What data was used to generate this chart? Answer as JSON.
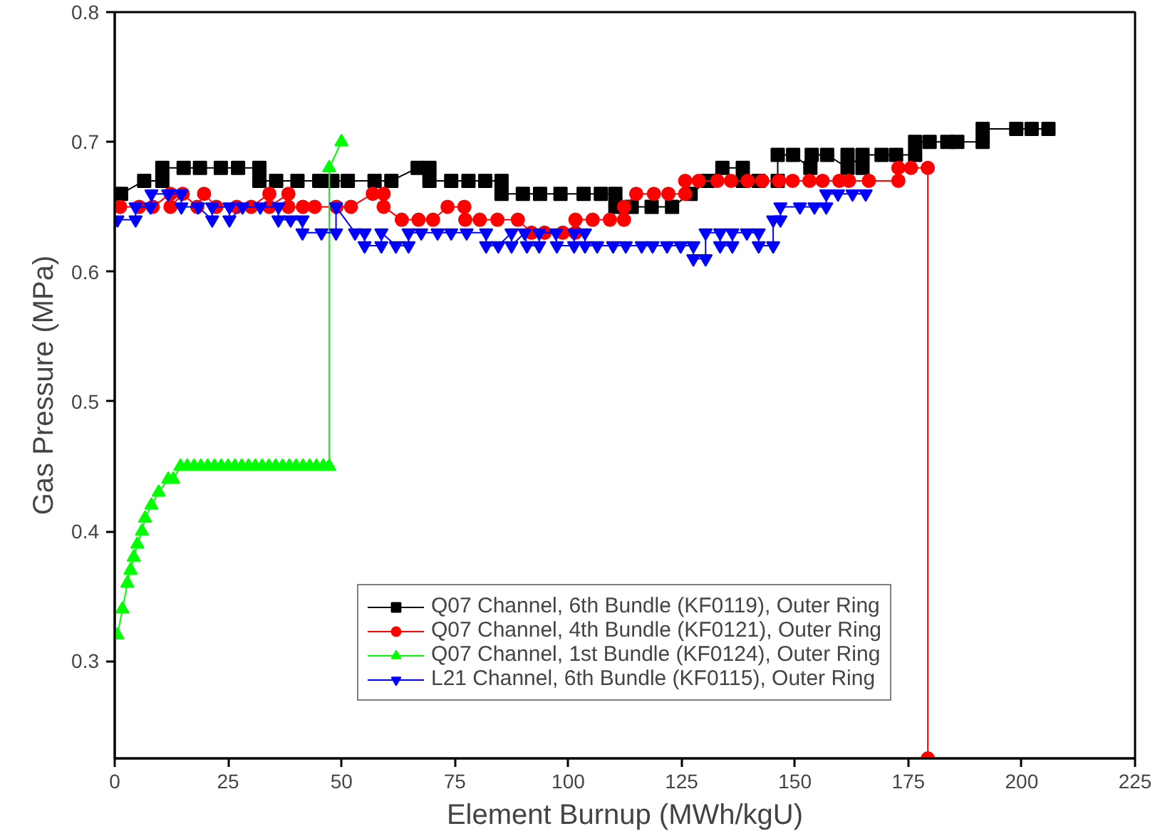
{
  "chart_data": {
    "type": "line",
    "xlabel": "Element Burnup (MWh/kgU)",
    "ylabel": "Gas Pressure (MPa)",
    "xlim": [
      0,
      225
    ],
    "ylim": [
      0.225,
      0.8
    ],
    "xticks": [
      0,
      25,
      50,
      75,
      100,
      125,
      150,
      175,
      200,
      225
    ],
    "yticks": [
      {
        "value": 0.3,
        "label": "0.3"
      },
      {
        "value": 0.4,
        "label": "0.4"
      },
      {
        "value": 0.5,
        "label": "0.5"
      },
      {
        "value": 0.6,
        "label": "0.6"
      },
      {
        "value": 0.7,
        "label": "0.7"
      },
      {
        "value": 0.8,
        "label": "0.8"
      }
    ],
    "grid": false,
    "legend": "bottom",
    "series": [
      {
        "name": "Q07 Channel, 6th Bundle (KF0119), Outer Ring",
        "color": "#000000",
        "marker": "square",
        "x": [
          1.4,
          6.5,
          10.5,
          10.5,
          15.2,
          18.8,
          23.4,
          27.2,
          31.9,
          31.9,
          35.6,
          40.3,
          45.1,
          48,
          51.4,
          57.3,
          61,
          66.8,
          69.4,
          69.4,
          74.2,
          78,
          81.7,
          85.3,
          85.3,
          90,
          93.8,
          98.3,
          103.4,
          107.2,
          110.4,
          110.4,
          114,
          118.4,
          122.9,
          127,
          130.8,
          134,
          138.5,
          138.5,
          142,
          146.2,
          146.2,
          149.6,
          153.4,
          153.7,
          157.1,
          161.6,
          161.6,
          164.9,
          164.9,
          169.1,
          172.3,
          176.5,
          176.5,
          179.7,
          183.6,
          185.8,
          191.4,
          191.4,
          198.8,
          202.2,
          205.9
        ],
        "values": [
          0.66,
          0.67,
          0.67,
          0.68,
          0.68,
          0.68,
          0.68,
          0.68,
          0.68,
          0.67,
          0.67,
          0.67,
          0.67,
          0.67,
          0.67,
          0.67,
          0.67,
          0.68,
          0.68,
          0.67,
          0.67,
          0.67,
          0.67,
          0.67,
          0.66,
          0.66,
          0.66,
          0.66,
          0.66,
          0.66,
          0.66,
          0.65,
          0.65,
          0.65,
          0.65,
          0.66,
          0.67,
          0.68,
          0.68,
          0.67,
          0.67,
          0.67,
          0.69,
          0.69,
          0.68,
          0.69,
          0.69,
          0.68,
          0.69,
          0.68,
          0.69,
          0.69,
          0.69,
          0.69,
          0.7,
          0.7,
          0.7,
          0.7,
          0.7,
          0.71,
          0.71,
          0.71,
          0.71
        ]
      },
      {
        "name": "Q07 Channel, 4th Bundle (KF0121), Outer Ring",
        "color": "#ff0000",
        "marker": "circle",
        "x": [
          1.2,
          5.4,
          8.4,
          12.3,
          12.3,
          15,
          18.2,
          19.7,
          22.4,
          26.9,
          30.1,
          34.1,
          34.1,
          38.3,
          38.3,
          41.5,
          44.1,
          48.9,
          52.1,
          56.9,
          59.3,
          59.3,
          63.3,
          67,
          70.2,
          73.4,
          77.1,
          77.3,
          80.5,
          84.4,
          88.9,
          91.9,
          94.8,
          98.8,
          101.6,
          101.6,
          105.4,
          109.2,
          112.3,
          112.3,
          115,
          118.9,
          122.1,
          125.8,
          125.8,
          128.8,
          132.9,
          135.9,
          139.6,
          142.8,
          146.5,
          149.5,
          153.2,
          156.1,
          159.8,
          161.9,
          166.3,
          172.8,
          172.8,
          175.6,
          179.3,
          179.3
        ],
        "values": [
          0.65,
          0.65,
          0.65,
          0.66,
          0.65,
          0.66,
          0.65,
          0.66,
          0.65,
          0.65,
          0.65,
          0.66,
          0.65,
          0.66,
          0.65,
          0.65,
          0.65,
          0.65,
          0.65,
          0.66,
          0.66,
          0.65,
          0.64,
          0.64,
          0.64,
          0.65,
          0.65,
          0.64,
          0.64,
          0.64,
          0.64,
          0.63,
          0.63,
          0.63,
          0.63,
          0.64,
          0.64,
          0.64,
          0.64,
          0.65,
          0.66,
          0.66,
          0.66,
          0.66,
          0.67,
          0.67,
          0.67,
          0.67,
          0.67,
          0.67,
          0.67,
          0.67,
          0.67,
          0.67,
          0.67,
          0.67,
          0.67,
          0.67,
          0.68,
          0.68,
          0.68,
          0.225
        ]
      },
      {
        "name": "Q07 Channel, 1st Bundle (KF0124), Outer Ring",
        "color": "#00ff00",
        "marker": "triangle",
        "x": [
          0.6,
          1.7,
          2.8,
          3.5,
          4.2,
          5,
          6,
          6.7,
          8.1,
          9.7,
          11.8,
          12.9,
          14.5,
          16,
          17.5,
          19,
          20.5,
          22,
          23.5,
          25,
          26.5,
          28,
          29.5,
          31,
          32.5,
          34,
          35.5,
          37,
          38.5,
          40,
          41.5,
          43,
          44.5,
          46,
          47.3,
          47.3,
          50
        ],
        "values": [
          0.32,
          0.34,
          0.36,
          0.37,
          0.38,
          0.39,
          0.4,
          0.41,
          0.42,
          0.43,
          0.44,
          0.44,
          0.45,
          0.45,
          0.45,
          0.45,
          0.45,
          0.45,
          0.45,
          0.45,
          0.45,
          0.45,
          0.45,
          0.45,
          0.45,
          0.45,
          0.45,
          0.45,
          0.45,
          0.45,
          0.45,
          0.45,
          0.45,
          0.45,
          0.45,
          0.68,
          0.7
        ]
      },
      {
        "name": "L21 Channel, 6th Bundle (KF0115), Outer Ring",
        "color": "#0000ff",
        "marker": "triangle_down",
        "x": [
          0.6,
          4.6,
          4.6,
          7.9,
          8.1,
          11.8,
          14.7,
          14.7,
          18.4,
          21.5,
          21.5,
          25.3,
          25.3,
          28.2,
          32.1,
          36.1,
          36.1,
          38.8,
          41.4,
          41.4,
          45.6,
          48.8,
          48.8,
          53,
          55.1,
          55.1,
          58.8,
          58.8,
          62,
          64.8,
          64.8,
          67.6,
          71.2,
          74.2,
          77.6,
          81.9,
          81.9,
          84.6,
          87.5,
          87.5,
          90.4,
          90.9,
          93.6,
          93.6,
          97.3,
          97.5,
          101.3,
          101.3,
          103.7,
          103.7,
          106.4,
          109.9,
          112.7,
          116.2,
          118.6,
          121.8,
          124.8,
          127.6,
          127.6,
          130.3,
          130.3,
          133.5,
          133.5,
          136.2,
          136.2,
          139.4,
          142,
          142,
          145.2,
          145.2,
          146.8,
          146.8,
          151.1,
          154.3,
          156.9,
          156.9,
          159.5,
          162.7,
          165.6
        ],
        "values": [
          0.64,
          0.64,
          0.65,
          0.65,
          0.66,
          0.66,
          0.66,
          0.65,
          0.65,
          0.64,
          0.65,
          0.65,
          0.64,
          0.65,
          0.65,
          0.65,
          0.64,
          0.64,
          0.64,
          0.63,
          0.63,
          0.63,
          0.65,
          0.63,
          0.63,
          0.62,
          0.62,
          0.63,
          0.62,
          0.62,
          0.63,
          0.63,
          0.63,
          0.63,
          0.63,
          0.63,
          0.62,
          0.62,
          0.63,
          0.62,
          0.63,
          0.62,
          0.62,
          0.63,
          0.63,
          0.62,
          0.62,
          0.63,
          0.63,
          0.62,
          0.62,
          0.62,
          0.62,
          0.62,
          0.62,
          0.62,
          0.62,
          0.62,
          0.61,
          0.61,
          0.63,
          0.63,
          0.62,
          0.62,
          0.63,
          0.63,
          0.63,
          0.62,
          0.62,
          0.64,
          0.64,
          0.65,
          0.65,
          0.65,
          0.65,
          0.66,
          0.66,
          0.66,
          0.66
        ]
      }
    ]
  }
}
